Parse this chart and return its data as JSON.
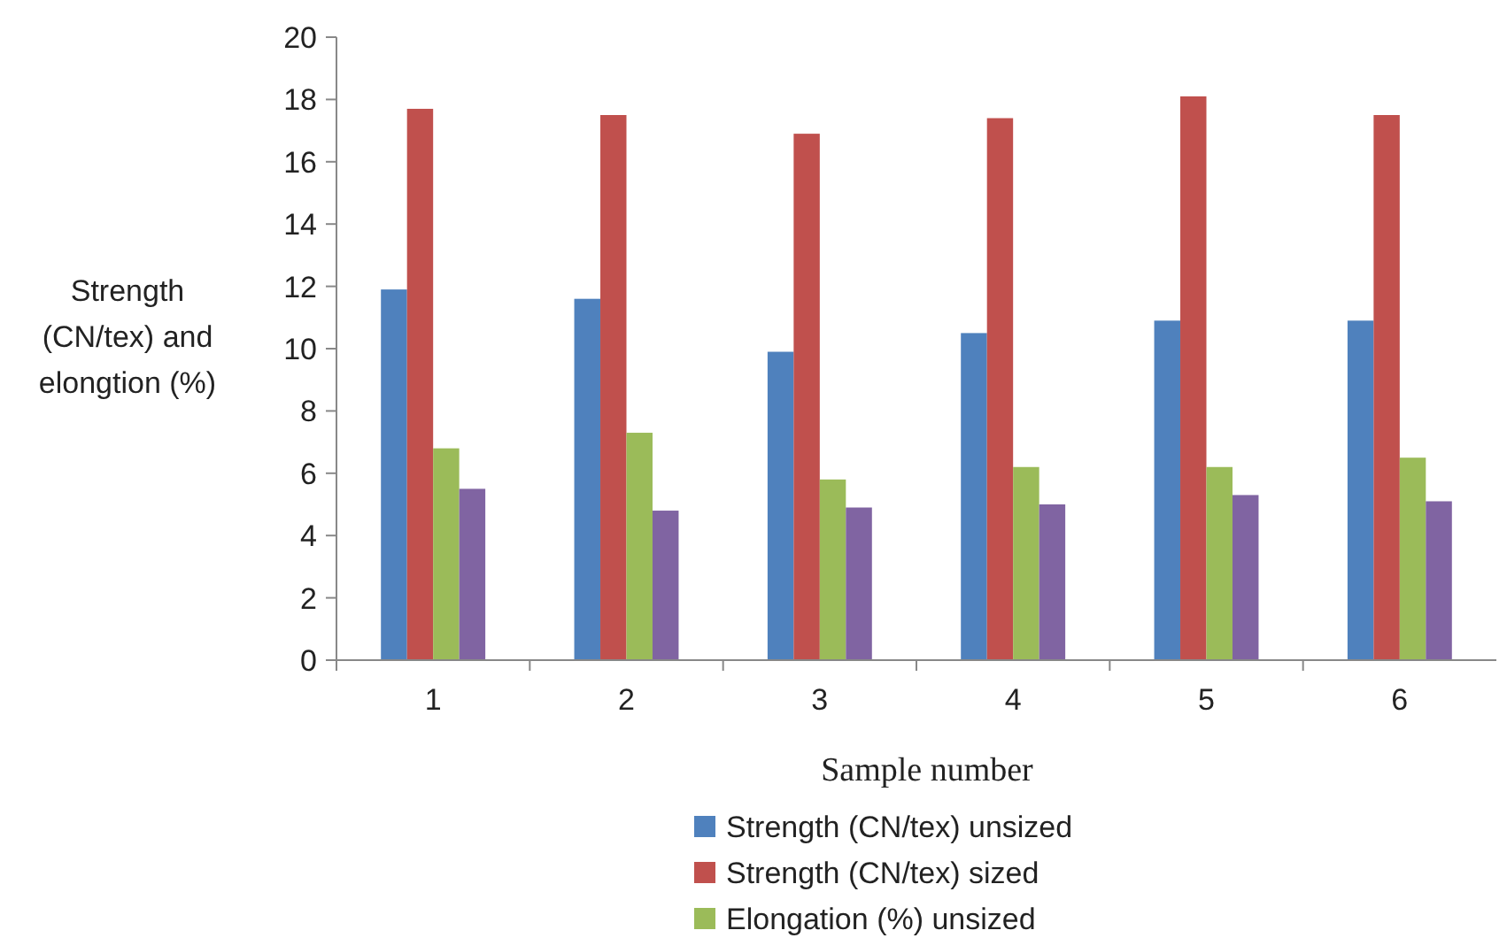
{
  "chart_data": {
    "type": "bar",
    "xlabel": "Sample number",
    "ylabel": "Strength (CN/tex) and elongtion (%)",
    "categories": [
      "1",
      "2",
      "3",
      "4",
      "5",
      "6"
    ],
    "series": [
      {
        "name": "Strength (CN/tex) unsized",
        "color": "#4f81bd",
        "values": [
          11.9,
          11.6,
          9.9,
          10.5,
          10.9,
          10.9
        ]
      },
      {
        "name": "Strength (CN/tex) sized",
        "color": "#c0504d",
        "values": [
          17.7,
          17.5,
          16.9,
          17.4,
          18.1,
          17.5
        ]
      },
      {
        "name": "Elongation (%) unsized",
        "color": "#9bbb59",
        "values": [
          6.8,
          7.3,
          5.8,
          6.2,
          6.2,
          6.5
        ]
      },
      {
        "color": "#8064a2",
        "values": [
          5.5,
          4.8,
          4.9,
          5.0,
          5.3,
          5.1
        ]
      }
    ],
    "ylim": [
      0,
      20
    ],
    "yticks": [
      0,
      2,
      4,
      6,
      8,
      10,
      12,
      14,
      16,
      18,
      20
    ],
    "legend": "bottom"
  }
}
